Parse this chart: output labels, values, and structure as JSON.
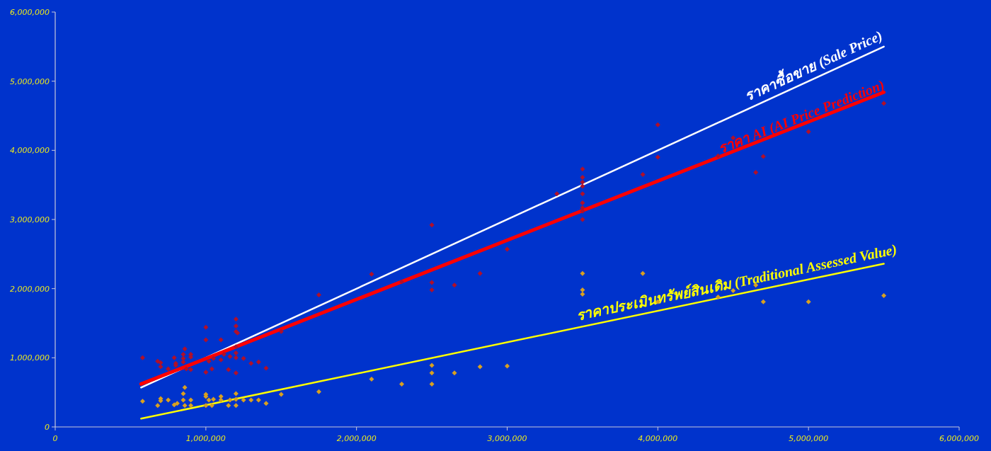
{
  "chart_data": {
    "type": "scatter",
    "marker": "diamond",
    "grid": false,
    "legend": false,
    "xlim": [
      0,
      6000000
    ],
    "ylim": [
      0,
      6000000
    ],
    "xticks": [
      0,
      {
        "value": 1000000,
        "label": "1,000,000"
      },
      {
        "value": 2000000,
        "label": "2,000,000"
      },
      {
        "value": 3000000,
        "label": "3,000,000"
      },
      {
        "value": 4000000,
        "label": "4,000,000"
      },
      {
        "value": 5000000,
        "label": "5,000,000"
      },
      {
        "value": 6000000,
        "label": "6,000,000"
      }
    ],
    "yticks": [
      0,
      {
        "value": 1000000,
        "label": "1,000,000"
      },
      {
        "value": 2000000,
        "label": "2,000,000"
      },
      {
        "value": 3000000,
        "label": "3,000,000"
      },
      {
        "value": 4000000,
        "label": "4,000,000"
      },
      {
        "value": 5000000,
        "label": "5,000,000"
      },
      {
        "value": 6000000,
        "label": "6,000,000"
      }
    ],
    "series": [
      {
        "color": "#b0102a",
        "x": [
          580000,
          680000,
          700000,
          700000,
          750000,
          790000,
          800000,
          800000,
          850000,
          850000,
          850000,
          860000,
          870000,
          900000,
          900000,
          900000,
          1000000,
          1000000,
          1000000,
          1020000,
          1040000,
          1050000,
          1100000,
          1100000,
          1120000,
          1150000,
          1160000,
          1200000,
          1200000,
          1200000,
          1200000,
          1200000,
          1200000,
          1200000,
          1210000,
          1250000,
          1300000,
          1350000,
          1400000,
          1500000,
          1750000,
          2100000,
          2300000,
          2500000,
          2500000,
          2500000,
          2650000,
          2820000,
          3000000,
          3330000,
          3500000,
          3500000,
          3500000,
          3500000,
          3500000,
          3500000,
          3500000,
          3500000,
          3500000,
          3900000,
          4000000,
          4000000,
          4400000,
          4500000,
          4650000,
          4700000,
          5000000,
          5500000
        ],
        "values": [
          1000000,
          950000,
          930000,
          870000,
          840000,
          1000000,
          920000,
          890000,
          1050000,
          990000,
          940000,
          1130000,
          840000,
          1050000,
          1010000,
          830000,
          1440000,
          1260000,
          790000,
          950000,
          840000,
          990000,
          1260000,
          970000,
          1050000,
          830000,
          1020000,
          1560000,
          1460000,
          1380000,
          1160000,
          1070000,
          1000000,
          780000,
          1360000,
          990000,
          920000,
          940000,
          850000,
          1380000,
          1910000,
          2210000,
          2100000,
          2920000,
          2090000,
          1980000,
          2050000,
          2220000,
          2570000,
          3370000,
          3730000,
          3610000,
          3540000,
          3480000,
          3240000,
          3170000,
          3120000,
          3000000,
          3370000,
          3650000,
          4370000,
          3900000,
          3920000,
          4180000,
          3680000,
          3910000,
          4270000,
          4680000
        ]
      },
      {
        "color": "#d8a020",
        "x": [
          580000,
          680000,
          700000,
          700000,
          750000,
          790000,
          810000,
          850000,
          850000,
          860000,
          860000,
          900000,
          900000,
          1000000,
          1000000,
          1000000,
          1020000,
          1040000,
          1050000,
          1100000,
          1100000,
          1150000,
          1160000,
          1200000,
          1200000,
          1200000,
          1250000,
          1300000,
          1350000,
          1400000,
          1500000,
          1750000,
          2100000,
          2300000,
          2500000,
          2500000,
          2500000,
          2650000,
          2820000,
          3000000,
          3500000,
          3500000,
          3500000,
          3900000,
          4000000,
          4400000,
          4500000,
          4650000,
          4700000,
          5000000,
          5500000
        ],
        "values": [
          370000,
          310000,
          410000,
          380000,
          390000,
          320000,
          340000,
          390000,
          480000,
          570000,
          310000,
          390000,
          310000,
          470000,
          440000,
          310000,
          390000,
          310000,
          400000,
          440000,
          390000,
          310000,
          390000,
          480000,
          400000,
          310000,
          390000,
          390000,
          390000,
          340000,
          470000,
          510000,
          690000,
          620000,
          890000,
          780000,
          620000,
          780000,
          870000,
          880000,
          2220000,
          1980000,
          1920000,
          2220000,
          1810000,
          1880000,
          1970000,
          2050000,
          1810000,
          1810000,
          1900000
        ]
      },
      {
        "type": "line",
        "name": "ราคาซื้อขาย (Sale Price)",
        "color": "#ffffff",
        "marker": "none",
        "x": [
          570000,
          5500000
        ],
        "values": [
          570000,
          5500000
        ]
      },
      {
        "type": "line",
        "name": "ราคา AI (AI Price  Prediction)",
        "color": "#ff0000",
        "marker": "none",
        "x": [
          570000,
          5500000
        ],
        "values": [
          620000,
          4840000
        ]
      },
      {
        "type": "line",
        "name": "ราคาประเมินทรัพย์สินเดิม (Traditional Assessed Value)",
        "color": "#ffff00",
        "marker": "none",
        "x": [
          570000,
          5500000
        ],
        "values": [
          120000,
          2360000
        ]
      }
    ]
  }
}
